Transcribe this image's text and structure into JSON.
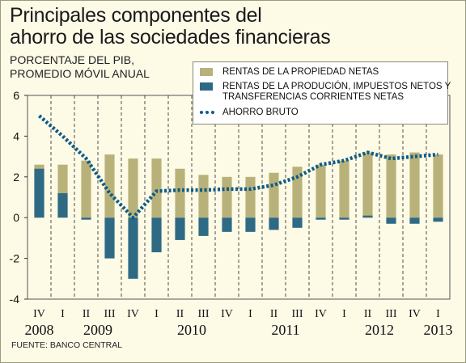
{
  "header": {
    "title_line1": "Principales componentes del",
    "title_line2": "ahorro de las sociedades financieras",
    "subtitle_line1": "PORCENTAJE DEL PIB,",
    "subtitle_line2": "PROMEDIO MÓVIL ANUAL"
  },
  "legend": {
    "item1": "RENTAS DE LA PROPIEDAD NETAS",
    "item2_line1": "RENTAS DE LA PRODUCIÓN, IMPUESTOS NETOS Y",
    "item2_line2": "TRANSFERENCIAS CORRIENTES NETAS",
    "item3": "AHORRO BRUTO"
  },
  "source": "FUENTE: BANCO CENTRAL",
  "colors": {
    "propiedad": "#b8b27a",
    "produccion": "#2f6a85",
    "ahorro": "#0e5b87",
    "background": "#fdfae6"
  },
  "chart_data": {
    "type": "bar",
    "quarters": [
      "IV",
      "I",
      "II",
      "III",
      "IV",
      "I",
      "II",
      "III",
      "IV",
      "I",
      "II",
      "III",
      "IV",
      "I",
      "II",
      "III",
      "IV",
      "I"
    ],
    "years": [
      {
        "label": "2008",
        "start": 0,
        "end": 0
      },
      {
        "label": "2009",
        "start": 1,
        "end": 4
      },
      {
        "label": "2010",
        "start": 5,
        "end": 8
      },
      {
        "label": "2011",
        "start": 9,
        "end": 12
      },
      {
        "label": "2012",
        "start": 13,
        "end": 16
      },
      {
        "label": "2013",
        "start": 17,
        "end": 17
      }
    ],
    "ylim": [
      -4,
      6
    ],
    "yticks": [
      "6",
      "4",
      "2",
      "0",
      "-2",
      "-4"
    ],
    "grid": "vertical dashed",
    "series": [
      {
        "name": "RENTAS DE LA PROPIEDAD NETAS",
        "kind": "bar",
        "values": [
          2.6,
          2.6,
          2.8,
          3.1,
          2.9,
          2.9,
          2.4,
          2.1,
          2.0,
          2.0,
          2.2,
          2.5,
          2.6,
          2.8,
          3.2,
          3.1,
          3.2,
          3.1
        ]
      },
      {
        "name": "RENTAS DE LA PRODUCIÓN, IMPUESTOS NETOS Y TRANSFERENCIAS CORRIENTES NETAS",
        "kind": "bar",
        "values": [
          2.4,
          1.2,
          -0.1,
          -2.0,
          -3.0,
          -1.7,
          -1.1,
          -0.9,
          -0.7,
          -0.7,
          -0.6,
          -0.5,
          -0.1,
          -0.1,
          0.1,
          -0.3,
          -0.3,
          -0.2
        ]
      },
      {
        "name": "AHORRO BRUTO",
        "kind": "line",
        "values": [
          5.0,
          4.0,
          2.9,
          1.2,
          0.0,
          1.3,
          1.35,
          1.35,
          1.4,
          1.4,
          1.6,
          2.0,
          2.6,
          2.8,
          3.2,
          2.9,
          3.0,
          3.1
        ]
      }
    ]
  }
}
